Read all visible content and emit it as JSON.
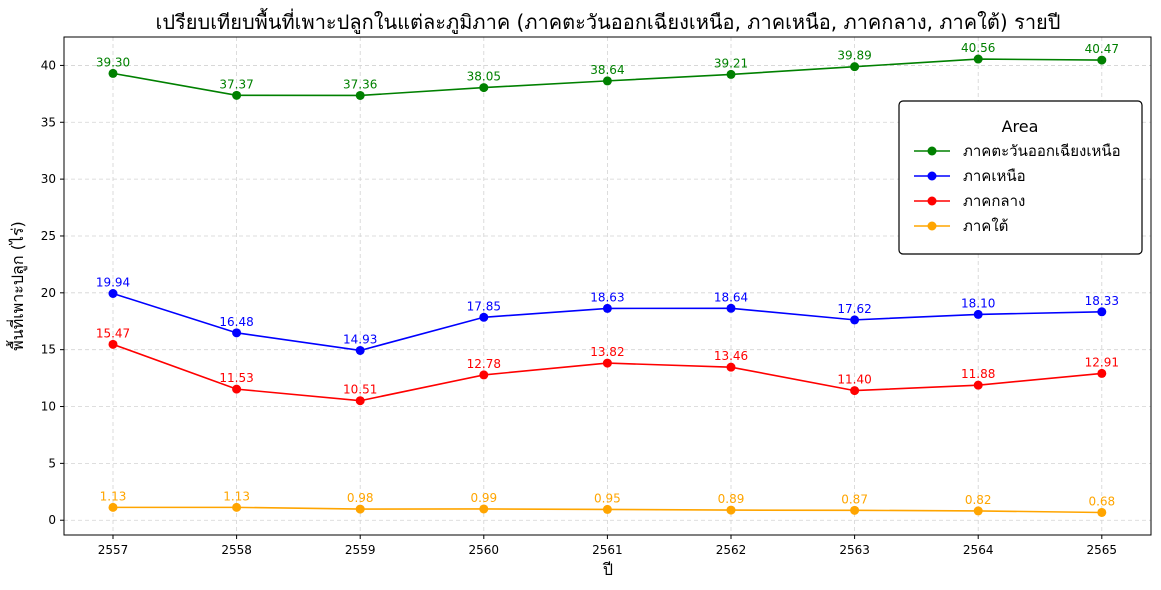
{
  "chart_data": {
    "type": "line",
    "title": "เปรียบเทียบพื้นที่เพาะปลูกในแต่ละภูมิภาค (ภาคตะวันออกเฉียงเหนือ, ภาคเหนือ, ภาคกลาง, ภาคใต้) รายปี",
    "xlabel": "ปี",
    "ylabel": "พื้นที่เพาะปลูก (ไร่)",
    "x": [
      "2557",
      "2558",
      "2559",
      "2560",
      "2561",
      "2562",
      "2563",
      "2564",
      "2565"
    ],
    "ylim": [
      -1.3,
      42.5
    ],
    "yticks": [
      0,
      5,
      10,
      15,
      20,
      25,
      30,
      35,
      40
    ],
    "grid": true,
    "legend": {
      "title": "Area",
      "placement": "upper right"
    },
    "series": [
      {
        "name": "ภาคตะวันออกเฉียงเหนือ",
        "color": "#008000",
        "values": [
          39.3,
          37.37,
          37.36,
          38.05,
          38.64,
          39.21,
          39.89,
          40.56,
          40.47
        ],
        "labels": [
          "39.30",
          "37.37",
          "37.36",
          "38.05",
          "38.64",
          "39.21",
          "39.89",
          "40.56",
          "40.47"
        ]
      },
      {
        "name": "ภาคเหนือ",
        "color": "#0000ff",
        "values": [
          19.94,
          16.48,
          14.93,
          17.85,
          18.63,
          18.64,
          17.62,
          18.1,
          18.33
        ],
        "labels": [
          "19.94",
          "16.48",
          "14.93",
          "17.85",
          "18.63",
          "18.64",
          "17.62",
          "18.10",
          "18.33"
        ]
      },
      {
        "name": "ภาคกลาง",
        "color": "#ff0000",
        "values": [
          15.47,
          11.53,
          10.51,
          12.78,
          13.82,
          13.46,
          11.4,
          11.88,
          12.91
        ],
        "labels": [
          "15.47",
          "11.53",
          "10.51",
          "12.78",
          "13.82",
          "13.46",
          "11.40",
          "11.88",
          "12.91"
        ]
      },
      {
        "name": "ภาคใต้",
        "color": "#ffa500",
        "values": [
          1.13,
          1.13,
          0.98,
          0.99,
          0.95,
          0.89,
          0.87,
          0.82,
          0.68
        ],
        "labels": [
          "1.13",
          "1.13",
          "0.98",
          "0.99",
          "0.95",
          "0.89",
          "0.87",
          "0.82",
          "0.68"
        ]
      }
    ]
  }
}
